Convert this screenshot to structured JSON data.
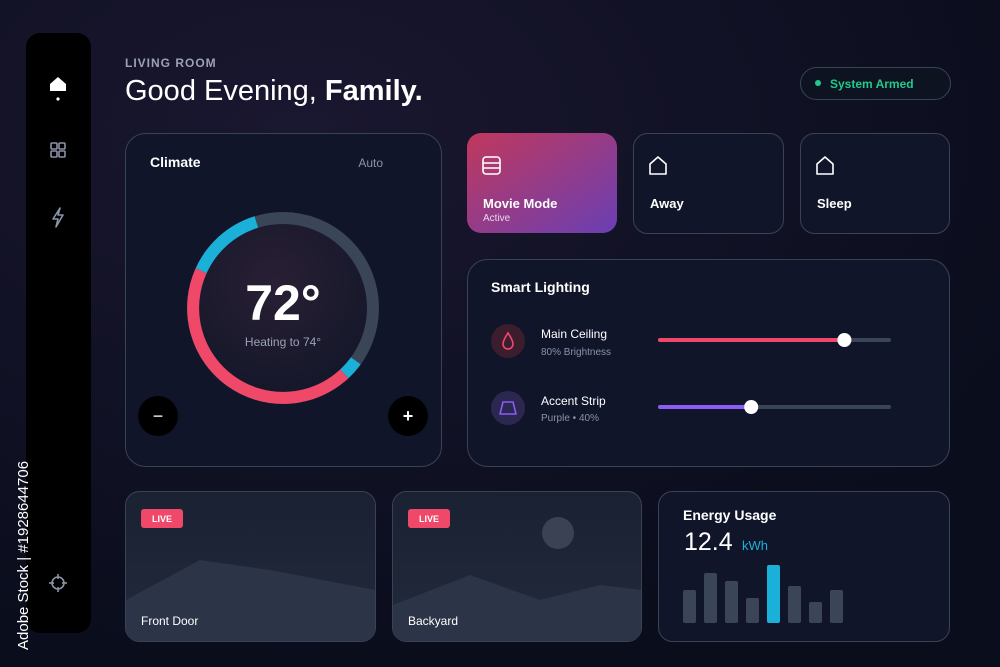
{
  "sidebar": {
    "watermark": "Adobe Stock | #1928644706"
  },
  "header": {
    "room": "LIVING ROOM",
    "greeting": "Good Evening,",
    "name": "Family.",
    "status": "System Armed"
  },
  "climate": {
    "title": "Climate",
    "mode": "Auto",
    "temperature": "72°",
    "status": "Heating to 74°",
    "decrease": "−",
    "increase": "+"
  },
  "scenes": [
    {
      "label": "Movie Mode",
      "state": "Active"
    },
    {
      "label": "Away"
    },
    {
      "label": "Sleep"
    }
  ],
  "lighting": {
    "title": "Smart Lighting",
    "items": [
      {
        "name": "Main Ceiling",
        "detail": "80% Brightness",
        "level": 80,
        "color": "#f0466a"
      },
      {
        "name": "Accent Strip",
        "detail": "Purple • 40%",
        "level": 40,
        "color": "#8b5cf6"
      }
    ]
  },
  "cameras": [
    {
      "badge": "LIVE",
      "name": "Front Door"
    },
    {
      "badge": "LIVE",
      "name": "Backyard"
    }
  ],
  "energy": {
    "title": "Energy Usage",
    "value": "12.4",
    "unit": "kWh",
    "bars": [
      33,
      50,
      42,
      25,
      58,
      37,
      21,
      33
    ],
    "highlight": 4,
    "color": "#3a4658",
    "highlight_color": "#1ab0d8"
  }
}
